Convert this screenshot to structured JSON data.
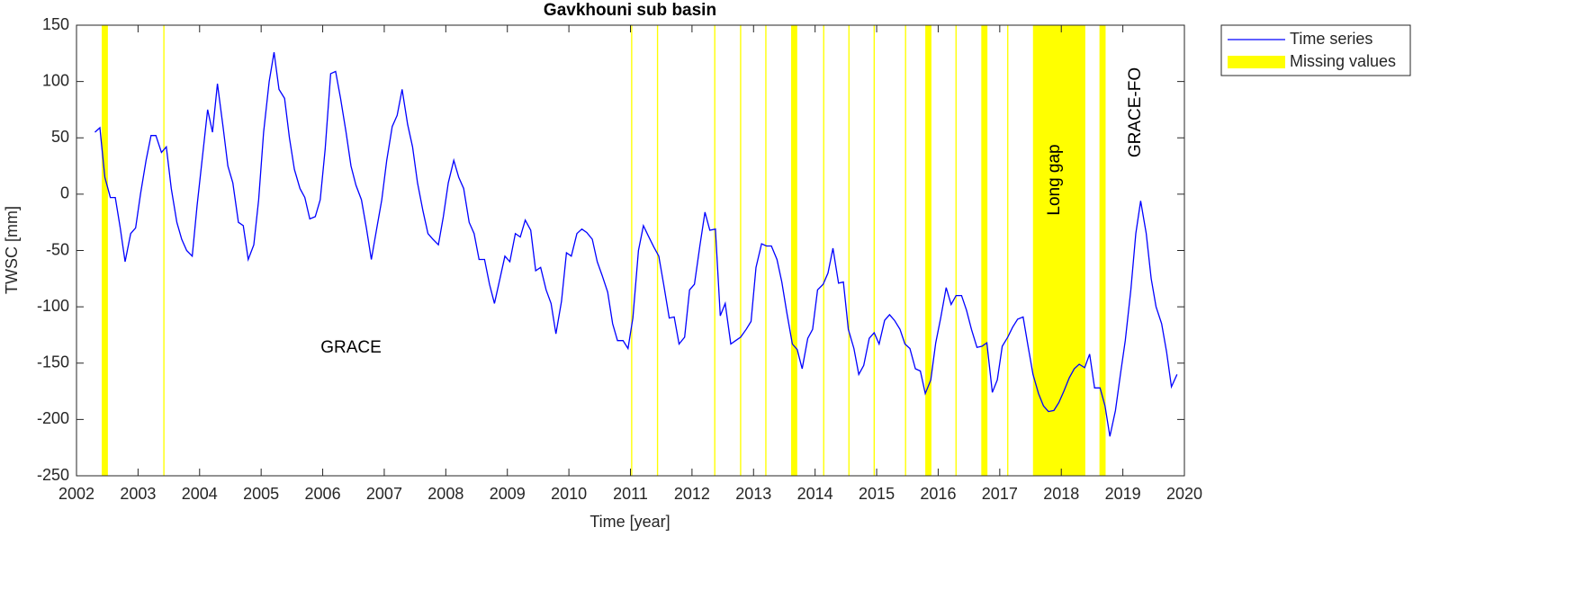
{
  "chart_data": {
    "type": "line",
    "title": "Gavkhouni sub basin",
    "xlabel": "Time [year]",
    "ylabel": "TWSC [mm]",
    "xlim": [
      2002,
      2020
    ],
    "xticks": [
      2002,
      2003,
      2004,
      2005,
      2006,
      2007,
      2008,
      2009,
      2010,
      2011,
      2012,
      2013,
      2014,
      2015,
      2016,
      2017,
      2018,
      2019,
      2020
    ],
    "ylim": [
      -250,
      150
    ],
    "yticks": [
      -250,
      -200,
      -150,
      -100,
      -50,
      0,
      50,
      100,
      150
    ],
    "grid": false,
    "legend": "outside-top-right",
    "annotations": [
      "GRACE",
      "Long gap",
      "GRACE-FO"
    ],
    "x": [
      2002.3,
      2002.38,
      2002.46,
      2002.55,
      2002.63,
      2002.71,
      2002.79,
      2002.88,
      2002.96,
      2003.04,
      2003.13,
      2003.21,
      2003.29,
      2003.38,
      2003.46,
      2003.54,
      2003.63,
      2003.71,
      2003.79,
      2003.88,
      2003.96,
      2004.04,
      2004.13,
      2004.21,
      2004.29,
      2004.38,
      2004.46,
      2004.54,
      2004.63,
      2004.71,
      2004.79,
      2004.88,
      2004.96,
      2005.04,
      2005.13,
      2005.21,
      2005.29,
      2005.38,
      2005.46,
      2005.54,
      2005.63,
      2005.71,
      2005.79,
      2005.88,
      2005.96,
      2006.04,
      2006.13,
      2006.21,
      2006.29,
      2006.38,
      2006.46,
      2006.54,
      2006.63,
      2006.71,
      2006.79,
      2006.88,
      2006.96,
      2007.04,
      2007.13,
      2007.21,
      2007.29,
      2007.38,
      2007.46,
      2007.54,
      2007.63,
      2007.71,
      2007.79,
      2007.88,
      2007.96,
      2008.04,
      2008.13,
      2008.21,
      2008.29,
      2008.38,
      2008.46,
      2008.54,
      2008.63,
      2008.71,
      2008.79,
      2008.88,
      2008.96,
      2009.04,
      2009.13,
      2009.21,
      2009.29,
      2009.38,
      2009.46,
      2009.54,
      2009.63,
      2009.71,
      2009.79,
      2009.88,
      2009.96,
      2010.04,
      2010.13,
      2010.21,
      2010.29,
      2010.38,
      2010.46,
      2010.54,
      2010.63,
      2010.71,
      2010.79,
      2010.88,
      2010.96,
      2011.04,
      2011.13,
      2011.21,
      2011.29,
      2011.38,
      2011.46,
      2011.54,
      2011.63,
      2011.71,
      2011.79,
      2011.88,
      2011.96,
      2012.04,
      2012.13,
      2012.21,
      2012.29,
      2012.38,
      2012.46,
      2012.54,
      2012.63,
      2012.71,
      2012.79,
      2012.88,
      2012.96,
      2013.04,
      2013.13,
      2013.21,
      2013.29,
      2013.38,
      2013.46,
      2013.54,
      2013.63,
      2013.71,
      2013.79,
      2013.88,
      2013.96,
      2014.04,
      2014.13,
      2014.21,
      2014.29,
      2014.38,
      2014.46,
      2014.54,
      2014.63,
      2014.71,
      2014.79,
      2014.88,
      2014.96,
      2015.04,
      2015.13,
      2015.21,
      2015.29,
      2015.38,
      2015.46,
      2015.54,
      2015.63,
      2015.71,
      2015.79,
      2015.88,
      2015.96,
      2016.04,
      2016.13,
      2016.21,
      2016.29,
      2016.38,
      2016.46,
      2016.54,
      2016.63,
      2016.71,
      2016.79,
      2016.88,
      2016.96,
      2017.04,
      2017.13,
      2017.21,
      2017.29,
      2017.38,
      2017.46,
      2017.54,
      2017.63,
      2017.71,
      2017.79,
      2017.88,
      2017.96,
      2018.04,
      2018.13,
      2018.21,
      2018.29,
      2018.38,
      2018.46,
      2018.54,
      2018.63,
      2018.71,
      2018.79,
      2018.88,
      2018.96,
      2019.04,
      2019.13,
      2019.21,
      2019.29,
      2019.38,
      2019.46,
      2019.54,
      2019.63,
      2019.71,
      2019.79,
      2019.88
    ],
    "series": [
      {
        "name": "Time series",
        "color": "#0000ff",
        "values": [
          55,
          59,
          15,
          -3,
          -3,
          -30,
          -60,
          -35,
          -30,
          0,
          30,
          52,
          52,
          37,
          42,
          5,
          -25,
          -40,
          -50,
          -55,
          -10,
          30,
          75,
          55,
          98,
          60,
          25,
          10,
          -25,
          -28,
          -58,
          -45,
          -5,
          55,
          100,
          126,
          93,
          85,
          50,
          22,
          5,
          -3,
          -22,
          -20,
          -5,
          40,
          107,
          109,
          85,
          55,
          25,
          8,
          -5,
          -30,
          -58,
          -30,
          -5,
          30,
          60,
          70,
          93,
          62,
          42,
          10,
          -15,
          -35,
          -40,
          -45,
          -20,
          10,
          30,
          15,
          5,
          -25,
          -35,
          -58,
          -58,
          -80,
          -97,
          -75,
          -55,
          -60,
          -35,
          -38,
          -23,
          -32,
          -68,
          -65,
          -85,
          -97,
          -124,
          -95,
          -52,
          -55,
          -35,
          -31,
          -34,
          -40,
          -60,
          -72,
          -87,
          -115,
          -130,
          -130,
          -137,
          -110,
          -50,
          -28,
          -37,
          -47,
          -55,
          -80,
          -110,
          -109,
          -133,
          -127,
          -85,
          -80,
          -45,
          -16,
          -32,
          -31,
          -108,
          -97,
          -133,
          -130,
          -127,
          -120,
          -113,
          -65,
          -44,
          -46,
          -46,
          -58,
          -78,
          -105,
          -133,
          -138,
          -155,
          -128,
          -120,
          -85,
          -80,
          -70,
          -48,
          -79,
          -78,
          -120,
          -137,
          -160,
          -152,
          -128,
          -123,
          -133,
          -112,
          -107,
          -112,
          -120,
          -133,
          -137,
          -155,
          -157,
          -177,
          -165,
          -132,
          -110,
          -83,
          -98,
          -90,
          -90,
          -103,
          -120,
          -136,
          -135,
          -132,
          -176,
          -165,
          -135,
          -127,
          -118,
          -111,
          -109,
          -135,
          -160,
          -177,
          -188,
          -193,
          -192,
          -185,
          -175,
          -163,
          -155,
          -151,
          -154,
          -142,
          -172,
          -172,
          -188,
          -215,
          -192,
          -160,
          -130,
          -85,
          -35,
          -6,
          -35,
          -75,
          -100,
          -115,
          -140,
          -171,
          -160
        ]
      }
    ],
    "missing": {
      "name": "Missing values",
      "color": "#ffff00",
      "intervals": [
        [
          2002.41,
          2002.51
        ],
        [
          2003.41,
          2003.43
        ],
        [
          2011.01,
          2011.03
        ],
        [
          2011.43,
          2011.45
        ],
        [
          2012.36,
          2012.38
        ],
        [
          2012.78,
          2012.8
        ],
        [
          2013.19,
          2013.21
        ],
        [
          2013.61,
          2013.71
        ],
        [
          2014.13,
          2014.15
        ],
        [
          2014.54,
          2014.56
        ],
        [
          2014.95,
          2014.97
        ],
        [
          2015.46,
          2015.48
        ],
        [
          2015.79,
          2015.89
        ],
        [
          2016.28,
          2016.3
        ],
        [
          2016.7,
          2016.8
        ],
        [
          2017.12,
          2017.14
        ],
        [
          2017.54,
          2018.39
        ],
        [
          2018.62,
          2018.72
        ]
      ]
    }
  }
}
